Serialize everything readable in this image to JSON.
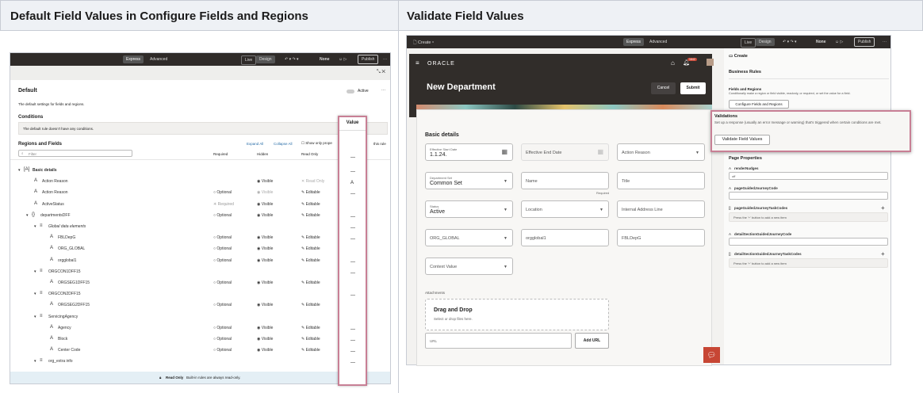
{
  "headers": [
    "Default Field Values in Configure Fields and Regions",
    "Validate Field Values"
  ],
  "left": {
    "toolbar": {
      "express": "Express",
      "advanced": "Advanced",
      "live": "Live",
      "design": "Design",
      "none": "None",
      "publish": "Publish",
      "more": "···"
    },
    "title": "Default",
    "active": "Active",
    "desc": "The default settings for fields and regions.",
    "conditions": "Conditions",
    "no_conditions": "The default rule doesn't have any conditions.",
    "regions": "Regions and Fields",
    "expand_all": "Expand All",
    "collapse_all": "Collapse All",
    "show_only": "Show only prope",
    "this_rule": "this rule",
    "filter_placeholder": "Filter",
    "cols": [
      "Required",
      "Hidden",
      "Read Only",
      "Value"
    ],
    "rows": [
      {
        "label": "Basic details",
        "lvl": 0,
        "icon": "[A]",
        "req": "",
        "hid": "",
        "ro": "",
        "val": "—"
      },
      {
        "label": "Action Reason",
        "lvl": 1,
        "icon": "A",
        "req": "",
        "hid": "Visible",
        "ro": "Read Only",
        "val": "A"
      },
      {
        "label": "Action Reason",
        "lvl": 1,
        "icon": "A",
        "req": "Optional",
        "hid": "Visible",
        "ro": "Editable",
        "val": "—"
      },
      {
        "label": "ActiveStatus",
        "lvl": 1,
        "icon": "A",
        "req": "Required",
        "hid": "Visible",
        "ro": "Editable",
        "val": ""
      },
      {
        "label": "departmentsDFF",
        "lvl": 1,
        "icon": "{}",
        "req": "Optional",
        "hid": "Visible",
        "ro": "Editable",
        "val": "—"
      },
      {
        "label": "Global data elements",
        "lvl": 2,
        "icon": "≡",
        "req": "",
        "hid": "",
        "ro": "",
        "val": "—"
      },
      {
        "label": "FBLDepG",
        "lvl": 3,
        "icon": "A",
        "req": "Optional",
        "hid": "Visible",
        "ro": "Editable",
        "val": "—"
      },
      {
        "label": "ORG_GLOBAL",
        "lvl": 3,
        "icon": "A",
        "req": "Optional",
        "hid": "Visible",
        "ro": "Editable",
        "val": ""
      },
      {
        "label": "orgglobal1",
        "lvl": 3,
        "icon": "A",
        "req": "Optional",
        "hid": "Visible",
        "ro": "Editable",
        "val": "—"
      },
      {
        "label": "ORGCON1DFF15",
        "lvl": 2,
        "icon": "≡",
        "req": "",
        "hid": "",
        "ro": "",
        "val": "—"
      },
      {
        "label": "ORGSEG1DFF15",
        "lvl": 3,
        "icon": "A",
        "req": "Optional",
        "hid": "Visible",
        "ro": "Editable",
        "val": ""
      },
      {
        "label": "ORGCON2DFF15",
        "lvl": 2,
        "icon": "≡",
        "req": "",
        "hid": "",
        "ro": "",
        "val": "—"
      },
      {
        "label": "ORGSEG2DFF15",
        "lvl": 3,
        "icon": "A",
        "req": "Optional",
        "hid": "Visible",
        "ro": "Editable",
        "val": ""
      },
      {
        "label": "ServicingAgency",
        "lvl": 2,
        "icon": "≡",
        "req": "",
        "hid": "",
        "ro": "",
        "val": ""
      },
      {
        "label": "Agency",
        "lvl": 3,
        "icon": "A",
        "req": "Optional",
        "hid": "Visible",
        "ro": "Editable",
        "val": "—"
      },
      {
        "label": "Block",
        "lvl": 3,
        "icon": "A",
        "req": "Optional",
        "hid": "Visible",
        "ro": "Editable",
        "val": "—"
      },
      {
        "label": "Center Code",
        "lvl": 3,
        "icon": "A",
        "req": "Optional",
        "hid": "Visible",
        "ro": "Editable",
        "val": "—"
      },
      {
        "label": "org_extra info",
        "lvl": 2,
        "icon": "≡",
        "req": "",
        "hid": "",
        "ro": "",
        "val": "—"
      }
    ],
    "footer_bold": "Read Only",
    "footer": "Built-in rules are always read-only.",
    "highlight_color": "#c87f95"
  },
  "right": {
    "create": "Create",
    "express": "Express",
    "advanced": "Advanced",
    "live": "Live",
    "design": "Design",
    "none": "None",
    "publish": "Publish",
    "brand": "ORACLE",
    "badge": "1642",
    "page_title": "New Department",
    "cancel": "Cancel",
    "submit": "Submit",
    "section": "Basic details",
    "fields": [
      {
        "label": "Effective Start Date",
        "value": "1.1.24.",
        "type": "date"
      },
      {
        "label": "",
        "value": "Effective End Date",
        "type": "date-ph"
      },
      {
        "label": "",
        "value": "Action Reason",
        "type": "select-ph"
      },
      {
        "label": "Department Set",
        "value": "Common Set",
        "type": "select"
      },
      {
        "label": "",
        "value": "Name",
        "type": "text-ph",
        "help": "Required"
      },
      {
        "label": "",
        "value": "Title",
        "type": "text-ph"
      },
      {
        "label": "Status",
        "value": "Active",
        "type": "select"
      },
      {
        "label": "",
        "value": "Location",
        "type": "select-ph"
      },
      {
        "label": "",
        "value": "Internal Address Line",
        "type": "text-ph"
      },
      {
        "label": "",
        "value": "ORG_GLOBAL",
        "type": "select-ph"
      },
      {
        "label": "",
        "value": "orgglobal1",
        "type": "text-ph"
      },
      {
        "label": "",
        "value": "FBLDepG",
        "type": "text-ph"
      },
      {
        "label": "",
        "value": "Context Value",
        "type": "select-ph"
      }
    ],
    "attachments": "Attachments",
    "drag": "Drag and Drop",
    "drag_sub": "Select or drop files here.",
    "url_placeholder": "URL",
    "add_url": "Add URL",
    "panel": {
      "title": "Create",
      "business_rules": "Business Rules",
      "fields_regions": "Fields and Regions",
      "fields_regions_desc": "Conditionally make a region or field visible, readonly, or required, or set the value for a field.",
      "configure_btn": "Configure Fields and Regions",
      "validations": "Validations",
      "validations_desc": "Set up a response (usually an error message or warning) that's triggered when certain conditions are met.",
      "validate_btn": "Validate Field Values",
      "page_props": "Page Properties",
      "props": [
        {
          "name": "renderNudges",
          "value": "off",
          "type": "text"
        },
        {
          "name": "pageGuidedJourneyCode",
          "value": "",
          "type": "text"
        },
        {
          "name": "pageGuidedJourneyTaskCodes",
          "value": "Press the '+' button to add a new item",
          "type": "list"
        },
        {
          "name": "detailSectionGuidedJourneyCode",
          "value": "",
          "type": "text"
        },
        {
          "name": "detailSectionGuidedJourneyTaskCodes",
          "value": "Press the '+' button to add a new item",
          "type": "list"
        }
      ]
    },
    "accent": "#c74634"
  }
}
